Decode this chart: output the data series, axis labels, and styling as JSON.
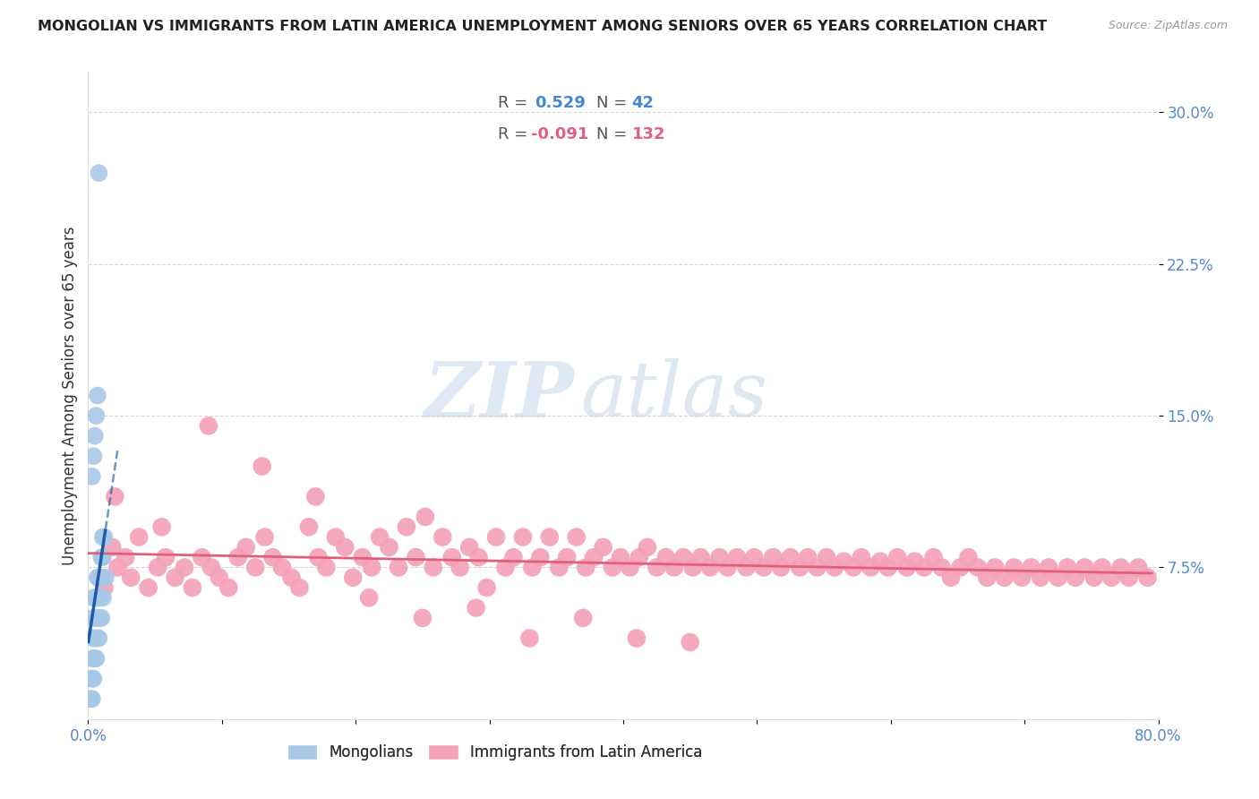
{
  "title": "MONGOLIAN VS IMMIGRANTS FROM LATIN AMERICA UNEMPLOYMENT AMONG SENIORS OVER 65 YEARS CORRELATION CHART",
  "source": "Source: ZipAtlas.com",
  "ylabel": "Unemployment Among Seniors over 65 years",
  "xlim": [
    0.0,
    0.8
  ],
  "ylim": [
    0.0,
    0.32
  ],
  "yticks": [
    0.075,
    0.15,
    0.225,
    0.3
  ],
  "ytick_labels": [
    "7.5%",
    "15.0%",
    "22.5%",
    "30.0%"
  ],
  "xticks": [
    0.0,
    0.1,
    0.2,
    0.3,
    0.4,
    0.5,
    0.6,
    0.7,
    0.8
  ],
  "xtick_labels": [
    "0.0%",
    "",
    "",
    "",
    "",
    "",
    "",
    "",
    "80.0%"
  ],
  "blue_color": "#a8c8e8",
  "blue_line_color": "#1a5ca8",
  "pink_color": "#f4a0b8",
  "pink_line_color": "#e0607a",
  "watermark_zip": "ZIP",
  "watermark_atlas": "atlas",
  "mongolian_x": [
    0.002,
    0.003,
    0.003,
    0.004,
    0.004,
    0.004,
    0.005,
    0.005,
    0.005,
    0.005,
    0.006,
    0.006,
    0.006,
    0.007,
    0.007,
    0.007,
    0.008,
    0.008,
    0.009,
    0.009,
    0.01,
    0.01,
    0.011,
    0.011,
    0.012,
    0.003,
    0.004,
    0.005,
    0.006,
    0.007,
    0.002,
    0.003,
    0.004,
    0.005,
    0.006,
    0.007,
    0.008,
    0.009,
    0.01,
    0.011,
    0.013,
    0.008
  ],
  "mongolian_y": [
    0.02,
    0.01,
    0.03,
    0.04,
    0.05,
    0.06,
    0.03,
    0.04,
    0.05,
    0.06,
    0.04,
    0.05,
    0.06,
    0.05,
    0.06,
    0.07,
    0.06,
    0.07,
    0.06,
    0.07,
    0.07,
    0.08,
    0.08,
    0.09,
    0.09,
    0.12,
    0.13,
    0.14,
    0.15,
    0.16,
    0.01,
    0.02,
    0.02,
    0.03,
    0.03,
    0.04,
    0.04,
    0.05,
    0.05,
    0.06,
    0.07,
    0.27
  ],
  "latin_x": [
    0.008,
    0.012,
    0.018,
    0.022,
    0.028,
    0.032,
    0.038,
    0.045,
    0.052,
    0.058,
    0.065,
    0.072,
    0.078,
    0.085,
    0.092,
    0.098,
    0.105,
    0.112,
    0.118,
    0.125,
    0.132,
    0.138,
    0.145,
    0.152,
    0.158,
    0.165,
    0.172,
    0.178,
    0.185,
    0.192,
    0.198,
    0.205,
    0.212,
    0.218,
    0.225,
    0.232,
    0.238,
    0.245,
    0.252,
    0.258,
    0.265,
    0.272,
    0.278,
    0.285,
    0.292,
    0.298,
    0.305,
    0.312,
    0.318,
    0.325,
    0.332,
    0.338,
    0.345,
    0.352,
    0.358,
    0.365,
    0.372,
    0.378,
    0.385,
    0.392,
    0.398,
    0.405,
    0.412,
    0.418,
    0.425,
    0.432,
    0.438,
    0.445,
    0.452,
    0.458,
    0.465,
    0.472,
    0.478,
    0.485,
    0.492,
    0.498,
    0.505,
    0.512,
    0.518,
    0.525,
    0.532,
    0.538,
    0.545,
    0.552,
    0.558,
    0.565,
    0.572,
    0.578,
    0.585,
    0.592,
    0.598,
    0.605,
    0.612,
    0.618,
    0.625,
    0.632,
    0.638,
    0.645,
    0.652,
    0.658,
    0.665,
    0.672,
    0.678,
    0.685,
    0.692,
    0.698,
    0.705,
    0.712,
    0.718,
    0.725,
    0.732,
    0.738,
    0.745,
    0.752,
    0.758,
    0.765,
    0.772,
    0.778,
    0.785,
    0.792,
    0.02,
    0.055,
    0.09,
    0.13,
    0.17,
    0.21,
    0.25,
    0.29,
    0.33,
    0.37,
    0.41,
    0.45
  ],
  "latin_y": [
    0.07,
    0.065,
    0.085,
    0.075,
    0.08,
    0.07,
    0.09,
    0.065,
    0.075,
    0.08,
    0.07,
    0.075,
    0.065,
    0.08,
    0.075,
    0.07,
    0.065,
    0.08,
    0.085,
    0.075,
    0.09,
    0.08,
    0.075,
    0.07,
    0.065,
    0.095,
    0.08,
    0.075,
    0.09,
    0.085,
    0.07,
    0.08,
    0.075,
    0.09,
    0.085,
    0.075,
    0.095,
    0.08,
    0.1,
    0.075,
    0.09,
    0.08,
    0.075,
    0.085,
    0.08,
    0.065,
    0.09,
    0.075,
    0.08,
    0.09,
    0.075,
    0.08,
    0.09,
    0.075,
    0.08,
    0.09,
    0.075,
    0.08,
    0.085,
    0.075,
    0.08,
    0.075,
    0.08,
    0.085,
    0.075,
    0.08,
    0.075,
    0.08,
    0.075,
    0.08,
    0.075,
    0.08,
    0.075,
    0.08,
    0.075,
    0.08,
    0.075,
    0.08,
    0.075,
    0.08,
    0.075,
    0.08,
    0.075,
    0.08,
    0.075,
    0.078,
    0.075,
    0.08,
    0.075,
    0.078,
    0.075,
    0.08,
    0.075,
    0.078,
    0.075,
    0.08,
    0.075,
    0.07,
    0.075,
    0.08,
    0.075,
    0.07,
    0.075,
    0.07,
    0.075,
    0.07,
    0.075,
    0.07,
    0.075,
    0.07,
    0.075,
    0.07,
    0.075,
    0.07,
    0.075,
    0.07,
    0.075,
    0.07,
    0.075,
    0.07,
    0.11,
    0.095,
    0.145,
    0.125,
    0.11,
    0.06,
    0.05,
    0.055,
    0.04,
    0.05,
    0.04,
    0.038
  ]
}
